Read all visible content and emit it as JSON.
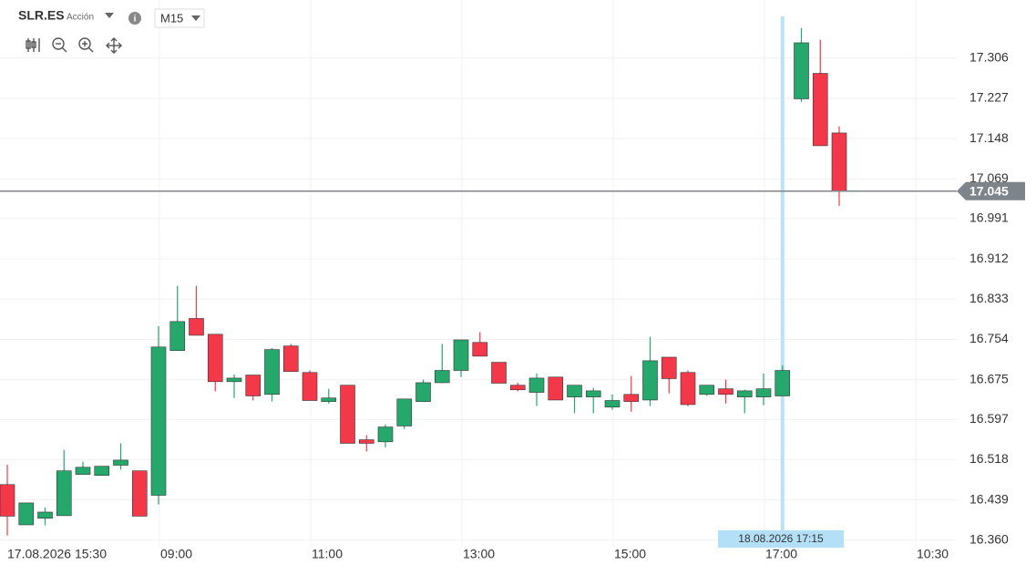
{
  "header": {
    "symbol": "SLR.ES",
    "asset_type": "Acción",
    "timeframe": "M15"
  },
  "chart_data": {
    "type": "candlestick",
    "open": [
      16.469,
      16.39,
      16.403,
      16.408,
      16.489,
      16.487,
      16.507,
      16.496,
      16.448,
      16.732,
      16.795,
      16.764,
      16.671,
      16.684,
      16.646,
      16.741,
      16.689,
      16.632,
      16.664,
      16.557,
      16.553,
      16.584,
      16.632,
      16.669,
      16.693,
      16.748,
      16.709,
      16.664,
      16.65,
      16.68,
      16.641,
      16.641,
      16.621,
      16.646,
      16.635,
      16.719,
      16.689,
      16.646,
      16.657,
      16.641,
      16.641,
      16.643,
      17.226,
      17.276,
      17.159
    ],
    "high": [
      16.508,
      16.433,
      16.424,
      16.537,
      16.514,
      16.505,
      16.55,
      16.496,
      16.78,
      16.859,
      16.859,
      16.764,
      16.685,
      16.684,
      16.737,
      16.745,
      16.693,
      16.657,
      16.664,
      16.566,
      16.587,
      16.637,
      16.675,
      16.745,
      16.753,
      16.768,
      16.709,
      16.669,
      16.687,
      16.68,
      16.664,
      16.659,
      16.646,
      16.682,
      16.759,
      16.719,
      16.693,
      16.664,
      16.675,
      16.655,
      16.687,
      16.703,
      17.365,
      17.342,
      17.172
    ],
    "low": [
      16.369,
      16.39,
      16.389,
      16.408,
      16.489,
      16.487,
      16.498,
      16.407,
      16.43,
      16.732,
      16.762,
      16.652,
      16.639,
      16.634,
      16.632,
      16.691,
      16.634,
      16.628,
      16.55,
      16.534,
      16.542,
      16.578,
      16.632,
      16.668,
      16.68,
      16.721,
      16.668,
      16.652,
      16.623,
      16.635,
      16.609,
      16.609,
      16.616,
      16.612,
      16.623,
      16.648,
      16.623,
      16.643,
      16.628,
      16.609,
      16.625,
      16.643,
      17.22,
      17.134,
      17.016
    ],
    "close": [
      16.407,
      16.433,
      16.415,
      16.496,
      16.503,
      16.505,
      16.517,
      16.407,
      16.739,
      16.789,
      16.762,
      16.671,
      16.678,
      16.643,
      16.734,
      16.691,
      16.634,
      16.639,
      16.55,
      16.55,
      16.582,
      16.637,
      16.669,
      16.693,
      16.753,
      16.721,
      16.668,
      16.655,
      16.678,
      16.635,
      16.664,
      16.653,
      16.634,
      16.632,
      16.712,
      16.677,
      16.626,
      16.664,
      16.646,
      16.653,
      16.657,
      16.693,
      17.336,
      17.134,
      17.045
    ],
    "up_color": "#26a86c",
    "down_color": "#f23849",
    "ylim": [
      16.347,
      17.42
    ],
    "yticks": [
      {
        "value": 16.36,
        "label": "16.360"
      },
      16.439,
      16.518,
      16.597,
      16.675,
      16.754,
      16.833,
      16.912,
      16.991,
      17.069,
      17.148,
      17.227,
      17.306
    ],
    "x_labels": [
      "17.08.2026 15:30",
      "09:00",
      "11:00",
      "13:00",
      "15:00",
      "17:00",
      "10:30"
    ],
    "last_price": 17.045,
    "crosshair_label": "18.08.2026 17:15",
    "grid": true
  }
}
